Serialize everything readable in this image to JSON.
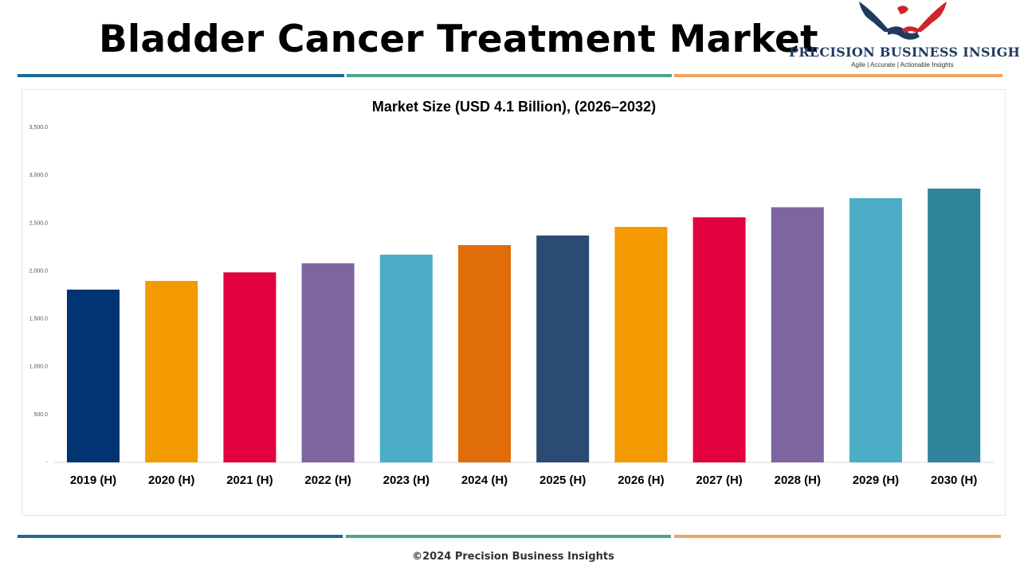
{
  "header": {
    "title": "Bladder Cancer Treatment Market"
  },
  "logo": {
    "name": "PRECISION BUSINESS INSIGHTS",
    "tagline": "Agile | Accurate | Actionable Insights",
    "colors": {
      "navy": "#1f3a5f",
      "red": "#d1232a"
    }
  },
  "stripes": {
    "blue": "#1b6b94",
    "green": "#4aa985",
    "orange": "#f0a35e"
  },
  "chart_data": {
    "type": "bar",
    "title": "Market Size (USD 4.1 Billion), (2026–2032)",
    "xlabel": "",
    "ylabel": "",
    "ylim": [
      0,
      3500
    ],
    "y_ticks": [
      0,
      500,
      1000,
      1500,
      2000,
      2500,
      3000,
      3500
    ],
    "y_tick_labels": [
      "-",
      "500.0",
      "1,000.0",
      "1,500.0",
      "2,000.0",
      "2,500.0",
      "3,000.0",
      "3,500.0"
    ],
    "grid": false,
    "legend": "none",
    "categories": [
      "2019 (H)",
      "2020 (H)",
      "2021 (H)",
      "2022 (H)",
      "2023 (H)",
      "2024 (H)",
      "2025 (H)",
      "2026 (H)",
      "2027 (H)",
      "2028 (H)",
      "2029 (H)",
      "2030 (H)"
    ],
    "values": [
      1805,
      1895,
      1985,
      2080,
      2170,
      2270,
      2370,
      2460,
      2560,
      2665,
      2760,
      2860
    ],
    "bar_colors": [
      "#003473",
      "#f29a00",
      "#e2003f",
      "#7e65a0",
      "#4badc6",
      "#e06c0a",
      "#2a4b73",
      "#f29a00",
      "#e2003f",
      "#7e65a0",
      "#4badc6",
      "#30849c"
    ]
  },
  "footer": {
    "text": "©2024 Precision Business Insights"
  }
}
